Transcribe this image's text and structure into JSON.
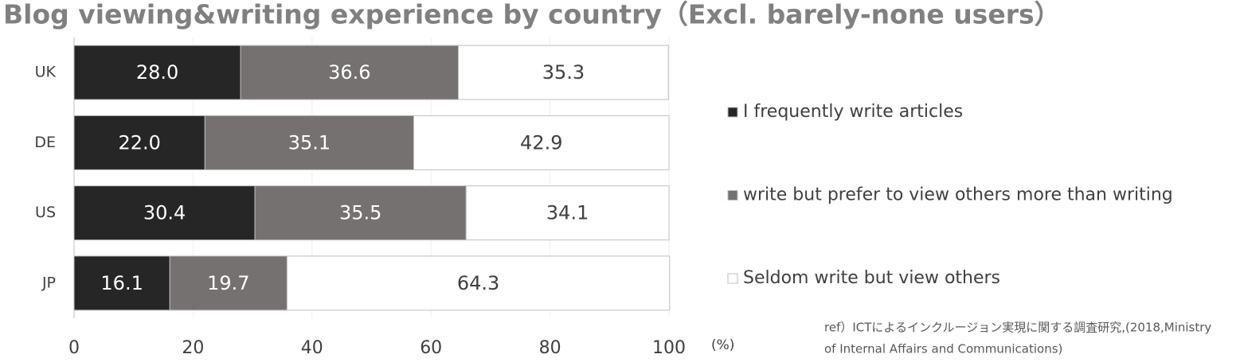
{
  "chart_data": {
    "type": "stacked_barh",
    "title": "Blog viewing&writing experience by country（Excl. barely-none users）",
    "categories": [
      "UK",
      "DE",
      "US",
      "JP"
    ],
    "series": [
      {
        "name": "I frequently write articles",
        "color": "#262626",
        "label_color": "#ffffff",
        "values": [
          28.0,
          22.0,
          30.4,
          16.1
        ],
        "value_labels": [
          "28.0",
          "22.0",
          "30.4",
          "16.1"
        ]
      },
      {
        "name": "write but prefer to view others more than writing",
        "color": "#767171",
        "label_color": "#ffffff",
        "values": [
          36.6,
          35.1,
          35.5,
          19.7
        ],
        "value_labels": [
          "36.6",
          "35.1",
          "35.5",
          "19.7"
        ]
      },
      {
        "name": "Seldom write but view others",
        "color": "#ffffff",
        "label_color": "#404040",
        "values": [
          35.3,
          42.9,
          34.1,
          64.3
        ],
        "value_labels": [
          "35.3",
          "42.9",
          "34.1",
          "64.3"
        ]
      }
    ],
    "xlim": [
      0,
      100
    ],
    "xticks": [
      0,
      20,
      40,
      60,
      80,
      100
    ],
    "xlabel": "(%)",
    "grid": true,
    "edgecolor": "#bfbfbf",
    "legend": "right",
    "annotations": [
      "ref）ICTによるインクルージョン実現に関する調査研究,(2018,Ministry",
      "of Internal Affairs and Communications)"
    ]
  }
}
